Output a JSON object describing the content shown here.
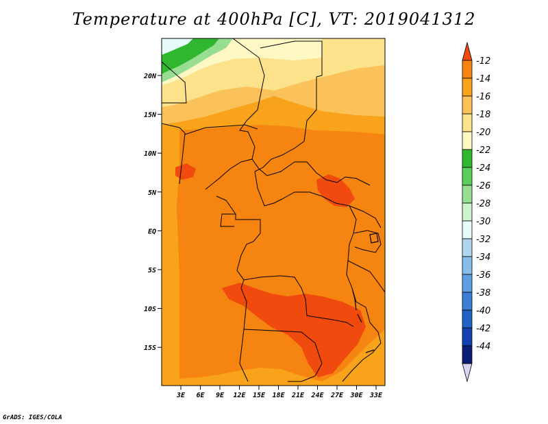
{
  "title": "Temperature at 400hPa [C], VT: 2019041312",
  "footer": "GrADS: IGES/COLA",
  "lat_labels": [
    "20N",
    "15N",
    "10N",
    "5N",
    "EQ",
    "5S",
    "10S",
    "15S"
  ],
  "lon_labels": [
    "3E",
    "6E",
    "9E",
    "12E",
    "15E",
    "18E",
    "21E",
    "24E",
    "27E",
    "30E",
    "33E"
  ],
  "colorbar": {
    "levels": [
      "-12",
      "-14",
      "-16",
      "-18",
      "-20",
      "-22",
      "-24",
      "-26",
      "-28",
      "-30",
      "-32",
      "-34",
      "-36",
      "-38",
      "-40",
      "-42",
      "-44"
    ],
    "colors": [
      "#f04a0e",
      "#f58410",
      "#f9a31a",
      "#fcc25a",
      "#fde28c",
      "#fef8c5",
      "#2fb82f",
      "#5dcd5d",
      "#97de92",
      "#cdf4cb",
      "#e8fbfb",
      "#afd5ef",
      "#86bde9",
      "#5d9fe0",
      "#3b7fd6",
      "#2262c6",
      "#1242b0",
      "#0b1e74",
      "#d6d6f1"
    ]
  },
  "colors": {
    "orange": "#f9a31a",
    "dark_orange": "#f58410",
    "red_orange": "#f04a0e",
    "light_orange": "#fcc25a",
    "pale_yellow": "#fde28c",
    "cream": "#fef8c5",
    "green": "#2fb82f",
    "light_green": "#97de92",
    "pale_cyan": "#e8fbfb"
  }
}
